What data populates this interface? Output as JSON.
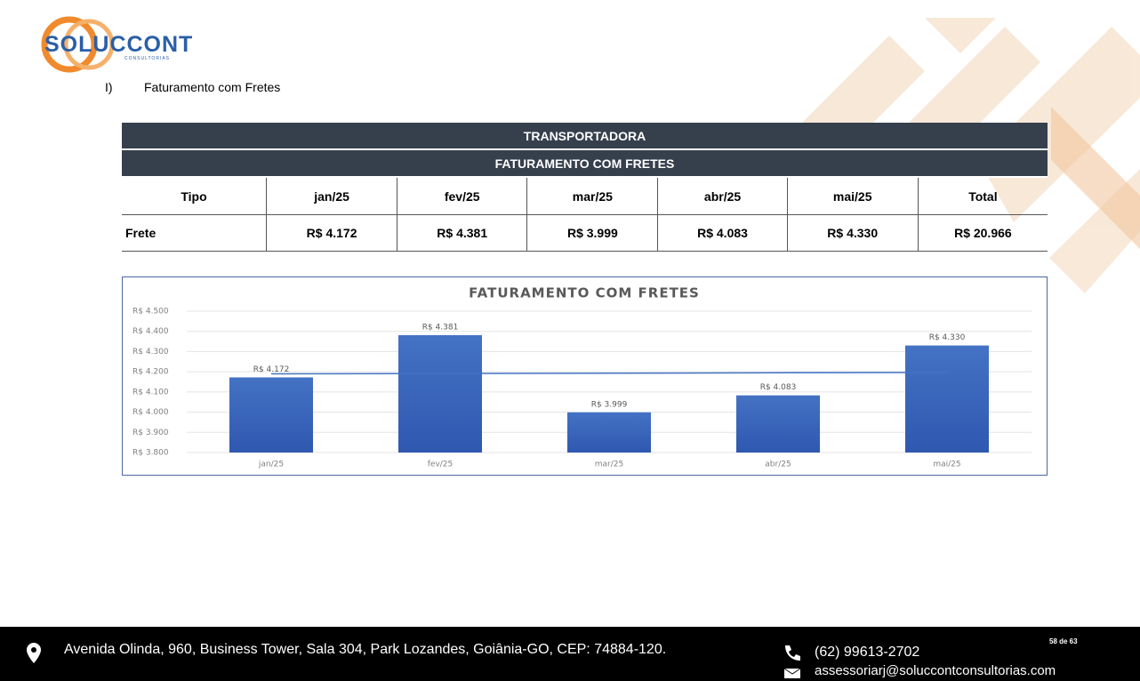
{
  "logo": {
    "name": "SOLUCCONT",
    "subtitle": "CONSULTORIAS"
  },
  "section": {
    "number": "I)",
    "title": "Faturamento com Fretes"
  },
  "table": {
    "title": "TRANSPORTADORA",
    "subtitle": "FATURAMENTO COM FRETES",
    "columns": [
      "Tipo",
      "jan/25",
      "fev/25",
      "mar/25",
      "abr/25",
      "mai/25",
      "Total"
    ],
    "rows": [
      [
        "Frete",
        "R$ 4.172",
        "R$ 4.381",
        "R$ 3.999",
        "R$ 4.083",
        "R$ 4.330",
        "R$ 20.966"
      ]
    ]
  },
  "chart_data": {
    "type": "bar",
    "title": "FATURAMENTO COM FRETES",
    "categories": [
      "jan/25",
      "fev/25",
      "mar/25",
      "abr/25",
      "mai/25"
    ],
    "values": [
      4172,
      4381,
      3999,
      4083,
      4330
    ],
    "value_labels": [
      "R$ 4.172",
      "R$ 4.381",
      "R$ 3.999",
      "R$ 4.083",
      "R$ 4.330"
    ],
    "color": "#4472c4",
    "trendline": true,
    "grid": true,
    "ylim": [
      3800,
      4500
    ],
    "yticks": [
      {
        "value": 3800,
        "label": "R$ 3.800"
      },
      {
        "value": 3900,
        "label": "R$ 3.900"
      },
      {
        "value": 4000,
        "label": "R$ 4.000"
      },
      {
        "value": 4100,
        "label": "R$ 4.100"
      },
      {
        "value": 4200,
        "label": "R$ 4.200"
      },
      {
        "value": 4300,
        "label": "R$ 4.300"
      },
      {
        "value": 4400,
        "label": "R$ 4.400"
      },
      {
        "value": 4500,
        "label": "R$ 4.500"
      }
    ]
  },
  "footer": {
    "address": "Avenida Olinda, 960, Business Tower, Sala 304, Park Lozandes, Goiânia-GO, CEP: 74884-120.",
    "phone": "(62) 99613-2702",
    "email": "assessoriarj@soluccontconsultorias.com",
    "page": "58 de 63"
  }
}
